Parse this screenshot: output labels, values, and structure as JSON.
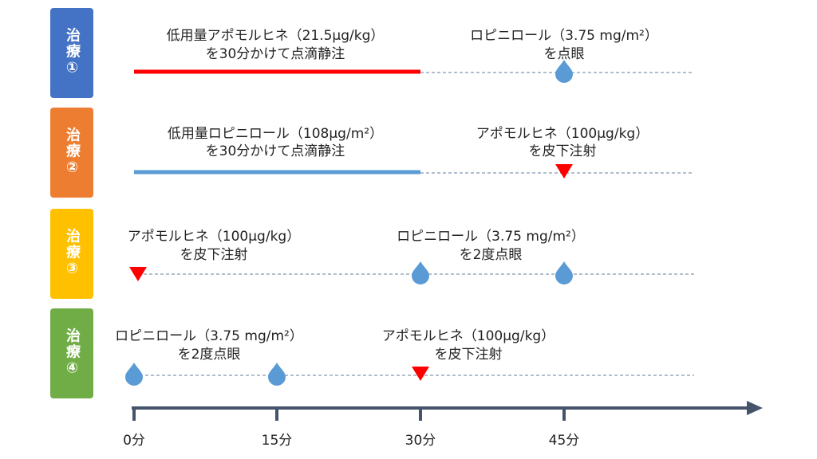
{
  "treatments": [
    {
      "label": "治療①",
      "notes": [
        {
          "lines": [
            "低用量アポモルヒネ（21.5μg/kg）",
            "を30分かけて点滴静注"
          ]
        },
        {
          "lines": [
            "ロピニロール（3.75 mg/m²）",
            "を点眼"
          ]
        }
      ]
    },
    {
      "label": "治療②",
      "notes": [
        {
          "lines": [
            "低用量ロピニロール（108μg/m²）",
            "を30分かけて点滴静注"
          ]
        },
        {
          "lines": [
            "アポモルヒネ（100μg/kg）",
            "を皮下注射"
          ]
        }
      ]
    },
    {
      "label": "治療③",
      "notes": [
        {
          "lines": [
            "アポモルヒネ（100μg/kg）",
            "を皮下注射"
          ]
        },
        {
          "lines": [
            "ロピニロール（3.75 mg/m²）",
            "を2度点眼"
          ]
        }
      ]
    },
    {
      "label": "治療④",
      "notes": [
        {
          "lines": [
            "ロピニロール（3.75 mg/m²）",
            "を2度点眼"
          ]
        },
        {
          "lines": [
            "アポモルヒネ（100μg/kg）",
            "を皮下注射"
          ]
        }
      ]
    }
  ],
  "axis": {
    "labels": [
      "0分",
      "15分",
      "30分",
      "45分"
    ]
  }
}
